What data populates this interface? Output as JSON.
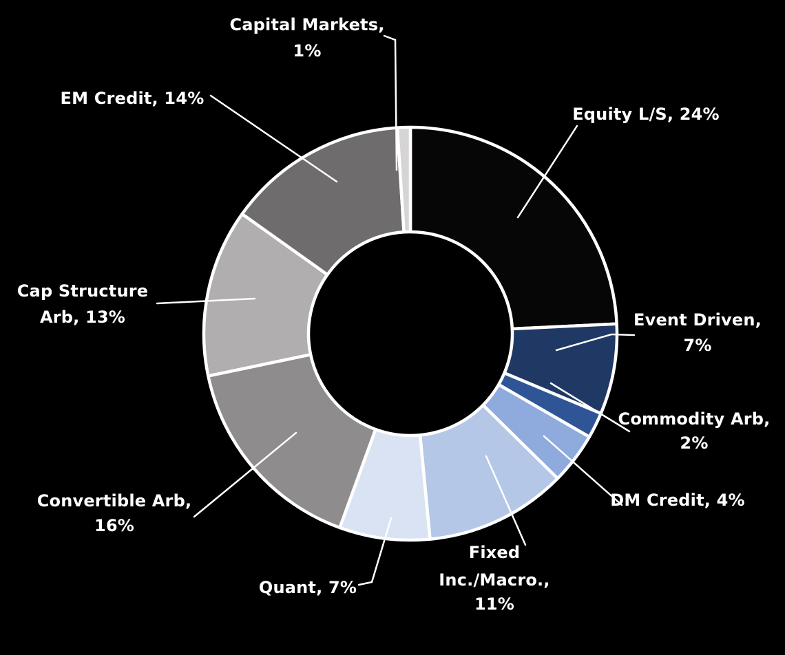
{
  "chart_data": {
    "type": "pie",
    "subtype": "donut",
    "title": "",
    "legend": "none",
    "label_format": "name, percent",
    "colors": {
      "background": "#000000",
      "slice_border": "#FFFFFF",
      "leader_line": "#FFFFFF",
      "label_text": "#FFFFFF"
    },
    "segments": [
      {
        "id": "equity-ls",
        "label": "Equity L/S",
        "value": 24,
        "percent_text": "24%",
        "label_lines": [
          "Equity L/S, 24%"
        ],
        "color": "#060606"
      },
      {
        "id": "event-driven",
        "label": "Event Driven",
        "value": 7,
        "percent_text": "7%",
        "label_lines": [
          "Event Driven,",
          "7%"
        ],
        "color": "#1F3864"
      },
      {
        "id": "commodity-arb",
        "label": "Commodity Arb",
        "value": 2,
        "percent_text": "2%",
        "label_lines": [
          "Commodity Arb,",
          "2%"
        ],
        "color": "#2F5597"
      },
      {
        "id": "dm-credit",
        "label": "DM Credit",
        "value": 4,
        "percent_text": "4%",
        "label_lines": [
          "DM Credit, 4%"
        ],
        "color": "#8FAADC"
      },
      {
        "id": "fixed-inc-macro",
        "label": "Fixed Inc./Macro.",
        "value": 11,
        "percent_text": "11%",
        "label_lines": [
          "Fixed",
          "Inc./Macro.,",
          "11%"
        ],
        "color": "#B4C7E7"
      },
      {
        "id": "quant",
        "label": "Quant",
        "value": 7,
        "percent_text": "7%",
        "label_lines": [
          "Quant, 7%"
        ],
        "color": "#DAE3F3"
      },
      {
        "id": "convertible-arb",
        "label": "Convertible Arb",
        "value": 16,
        "percent_text": "16%",
        "label_lines": [
          "Convertible Arb,",
          "16%"
        ],
        "color": "#8E8C8C"
      },
      {
        "id": "cap-structure-arb",
        "label": "Cap Structure Arb",
        "value": 13,
        "percent_text": "13%",
        "label_lines": [
          "Cap Structure",
          "Arb, 13%"
        ],
        "color": "#B0AEAE"
      },
      {
        "id": "em-credit",
        "label": "EM Credit",
        "value": 14,
        "percent_text": "14%",
        "label_lines": [
          "EM Credit, 14%"
        ],
        "color": "#6E6C6C"
      },
      {
        "id": "capital-markets",
        "label": "Capital Markets",
        "value": 1,
        "percent_text": "1%",
        "label_lines": [
          "Capital Markets,",
          "1%"
        ],
        "color": "#D6D4D4"
      }
    ]
  }
}
